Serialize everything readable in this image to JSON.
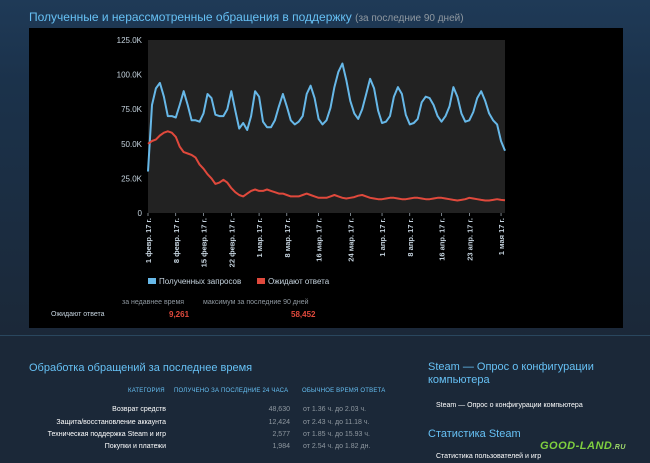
{
  "header": {
    "title": "Полученные и нерассмотренные обращения в поддержку",
    "subtitle": "(за последние 90 дней)"
  },
  "chart_data": {
    "type": "line",
    "y_ticks": [
      "0",
      "25.0K",
      "50.0K",
      "75.0K",
      "100.0K",
      "125.0K"
    ],
    "ylim": [
      0,
      125000
    ],
    "x_ticks": [
      "1 февр. 17 г.",
      "8 февр. 17 г.",
      "15 февр. 17 г.",
      "22 февр. 17 г.",
      "1 мар. 17 г.",
      "8 мар. 17 г.",
      "16 мар. 17 г.",
      "24 мар. 17 г.",
      "1 апр. 17 г.",
      "8 апр. 17 г.",
      "16 апр. 17 г.",
      "23 апр. 17 г.",
      "1 мая 17 г."
    ],
    "n_days": 91,
    "grid": false,
    "legend_position": "bottom",
    "series": [
      {
        "name": "Полученных запросов",
        "color": "#67b8e8",
        "values": [
          30000,
          78000,
          90000,
          94000,
          84000,
          70000,
          70000,
          69000,
          78000,
          88000,
          78000,
          67000,
          67000,
          66000,
          72000,
          86000,
          83000,
          71000,
          70000,
          70000,
          75000,
          88000,
          74000,
          61000,
          65000,
          60000,
          70000,
          88000,
          84000,
          66000,
          62000,
          62000,
          67000,
          77000,
          86000,
          77000,
          67000,
          64000,
          66000,
          70000,
          86000,
          92000,
          83000,
          68000,
          64000,
          67000,
          76000,
          91000,
          102000,
          108000,
          96000,
          81000,
          72000,
          68000,
          75000,
          86000,
          97000,
          90000,
          74000,
          65000,
          66000,
          70000,
          84000,
          91000,
          86000,
          71000,
          64000,
          65000,
          68000,
          80000,
          84000,
          83000,
          78000,
          70000,
          66000,
          70000,
          77000,
          91000,
          84000,
          72000,
          66000,
          67000,
          73000,
          83000,
          88000,
          81000,
          72000,
          67000,
          64000,
          52000,
          45000
        ]
      },
      {
        "name": "Ожидают ответа",
        "color": "#e0493c",
        "values": [
          50000,
          52000,
          53000,
          56000,
          58000,
          59000,
          58000,
          55000,
          48000,
          44000,
          43000,
          42000,
          40000,
          35000,
          32000,
          28000,
          25000,
          21000,
          22000,
          24000,
          22000,
          18000,
          15000,
          13000,
          12000,
          14000,
          16000,
          17000,
          16000,
          16000,
          17000,
          16000,
          15000,
          14000,
          14000,
          13000,
          12000,
          12000,
          12000,
          13000,
          14000,
          13000,
          12000,
          11000,
          11000,
          11000,
          12000,
          13000,
          12000,
          11000,
          10500,
          11000,
          11500,
          12500,
          13000,
          12000,
          11000,
          10500,
          10000,
          10000,
          10500,
          11000,
          11000,
          10500,
          10000,
          10000,
          10500,
          11000,
          11000,
          10500,
          10000,
          10000,
          10500,
          11000,
          11000,
          10500,
          10000,
          9500,
          9000,
          9500,
          10000,
          11000,
          10500,
          10000,
          9500,
          9000,
          9000,
          9500,
          10000,
          9500,
          9261
        ]
      }
    ]
  },
  "stats": {
    "recent_label": "за недавнее время",
    "max_label": "максимум за последние 90 дней",
    "row_label": "Ожидают ответа",
    "recent_value": "9,261",
    "max_value": "58,452"
  },
  "processing": {
    "title": "Обработка обращений за последнее время",
    "columns": [
      "КАТЕГОРИЯ",
      "ПОЛУЧЕНО ЗА ПОСЛЕДНИЕ 24 ЧАСА",
      "ОБЫЧНОЕ ВРЕМЯ ОТВЕТА"
    ],
    "rows": [
      {
        "category": "Возврат средств",
        "received": "48,630",
        "time": "от 1.36 ч. до 2.03 ч."
      },
      {
        "category": "Защита/восстановление аккаунта",
        "received": "12,424",
        "time": "от 2.43 ч. до 11.18 ч."
      },
      {
        "category": "Техническая поддержка Steam и игр",
        "received": "2,577",
        "time": "от 1.85 ч. до 15.93 ч."
      },
      {
        "category": "Покупки и платежи",
        "received": "1,984",
        "time": "от 2.54 ч. до 1.82 дн."
      }
    ]
  },
  "sidebar": {
    "survey_title": "Steam — Опрос о конфигурации компьютера",
    "survey_link": "Steam — Опрос о конфигурации компьютера",
    "stats_title": "Статистика Steam",
    "stats_link": "Статистика пользователей и игр"
  },
  "watermark": {
    "main": "GOOD-LAND",
    "suffix": ".RU"
  }
}
